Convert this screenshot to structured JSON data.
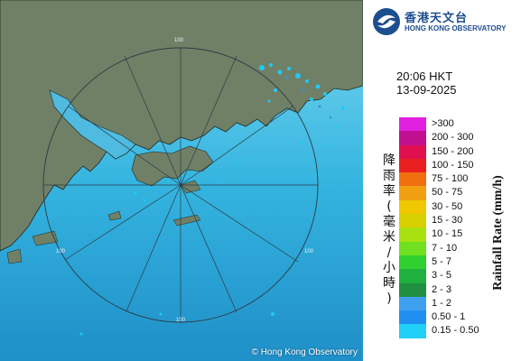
{
  "map": {
    "copyright": "© Hong Kong Observatory",
    "range_rings": [
      "100",
      "100",
      "100",
      "100"
    ],
    "colors": {
      "sea": "#38b6e0",
      "land": "#6f8067",
      "rain_light": "#22c8f5",
      "rain_med": "#3a8de0",
      "ring": "#2e3a44"
    }
  },
  "header": {
    "logo_icon": "hko-logo-icon",
    "org_name_zh": "香港天文台",
    "org_name_en": "HONG KONG OBSERVATORY"
  },
  "timestamp": {
    "time": "20:06 HKT",
    "date": "13-09-2025"
  },
  "legend": {
    "title_zh": "降雨率(毫米/小時)",
    "title_en": "Rainfall Rate (mm/h)",
    "items": [
      {
        "label": ">300",
        "color": "#e020e0"
      },
      {
        "label": "200 - 300",
        "color": "#c01090"
      },
      {
        "label": "150 - 200",
        "color": "#e01050"
      },
      {
        "label": "100 - 150",
        "color": "#e82020"
      },
      {
        "label": "75 - 100",
        "color": "#f07010"
      },
      {
        "label": "50 - 75",
        "color": "#f0a010"
      },
      {
        "label": "30 - 50",
        "color": "#f0c800"
      },
      {
        "label": "15 - 30",
        "color": "#d8d000"
      },
      {
        "label": "10 - 15",
        "color": "#a8e010"
      },
      {
        "label": "7 - 10",
        "color": "#70e020"
      },
      {
        "label": "5 - 7",
        "color": "#30d030"
      },
      {
        "label": "3 - 5",
        "color": "#20b040"
      },
      {
        "label": "2 - 3",
        "color": "#209040"
      },
      {
        "label": "1 - 2",
        "color": "#40a0f0"
      },
      {
        "label": "0.50 - 1",
        "color": "#2090f0"
      },
      {
        "label": "0.15 - 0.50",
        "color": "#20d0f8"
      }
    ]
  }
}
